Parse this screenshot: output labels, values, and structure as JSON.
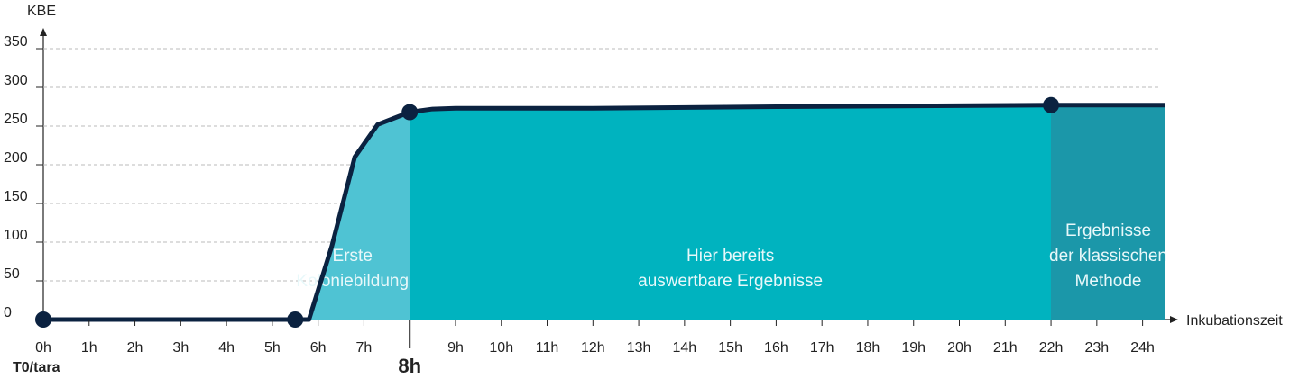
{
  "chart_data": {
    "type": "area-line",
    "y_label": "KBE",
    "x_label": "Inkubationszeit",
    "x_sublabel": "T0/tara",
    "x": [
      0,
      5.5,
      5.8,
      6.3,
      6.8,
      7.3,
      8,
      8.5,
      9,
      12,
      16,
      22,
      24.5
    ],
    "values": [
      0,
      0,
      0,
      95,
      210,
      252,
      268,
      272,
      273,
      273,
      275,
      277,
      277
    ],
    "line_color": "#0b2240",
    "highlight_x": [
      0,
      5.5,
      8,
      22
    ],
    "highlight_values": [
      0,
      0,
      268,
      277
    ],
    "regions": [
      {
        "from": 5.5,
        "to": 8,
        "color": "#4fc3d3",
        "label": [
          "Erste",
          "Koloniebildung"
        ]
      },
      {
        "from": 8,
        "to": 22,
        "color": "#00b3bf",
        "label": [
          "Hier bereits",
          "auswertbare Ergebnisse"
        ]
      },
      {
        "from": 22,
        "to": 24.5,
        "color": "#1b97a9",
        "label": [
          "Ergebnisse",
          "der klassischen",
          "Methode"
        ]
      }
    ],
    "xlim": [
      0,
      24.5
    ],
    "ylim": [
      0,
      350
    ],
    "yticks": [
      0,
      50,
      100,
      150,
      200,
      250,
      300,
      350
    ],
    "xticks": [
      {
        "value": 0,
        "label": "0h"
      },
      {
        "value": 1,
        "label": "1h"
      },
      {
        "value": 2,
        "label": "2h"
      },
      {
        "value": 3,
        "label": "3h"
      },
      {
        "value": 4,
        "label": "4h"
      },
      {
        "value": 5,
        "label": "5h"
      },
      {
        "value": 6,
        "label": "6h"
      },
      {
        "value": 7,
        "label": "7h"
      },
      {
        "value": 8,
        "label": "8h"
      },
      {
        "value": 9,
        "label": "9h"
      },
      {
        "value": 10,
        "label": "10h"
      },
      {
        "value": 11,
        "label": "11h"
      },
      {
        "value": 12,
        "label": "12h"
      },
      {
        "value": 13,
        "label": "13h"
      },
      {
        "value": 14,
        "label": "14h"
      },
      {
        "value": 15,
        "label": "15h"
      },
      {
        "value": 16,
        "label": "16h"
      },
      {
        "value": 17,
        "label": "17h"
      },
      {
        "value": 18,
        "label": "18h"
      },
      {
        "value": 19,
        "label": "19h"
      },
      {
        "value": 20,
        "label": "20h"
      },
      {
        "value": 21,
        "label": "21h"
      },
      {
        "value": 22,
        "label": "22h"
      },
      {
        "value": 23,
        "label": "23h"
      },
      {
        "value": 24,
        "label": "24h"
      }
    ],
    "bold_xtick_index": 8,
    "grid": true
  }
}
